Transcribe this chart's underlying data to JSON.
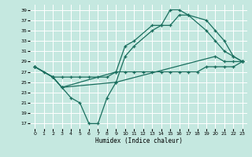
{
  "xlabel": "Humidex (Indice chaleur)",
  "bg_color": "#c5e8e0",
  "line_color": "#1a6e5e",
  "grid_color": "#ffffff",
  "xlim": [
    -0.5,
    23.5
  ],
  "ylim": [
    16,
    40
  ],
  "yticks": [
    17,
    19,
    21,
    23,
    25,
    27,
    29,
    31,
    33,
    35,
    37,
    39
  ],
  "xticks": [
    0,
    1,
    2,
    3,
    4,
    5,
    6,
    7,
    8,
    9,
    10,
    11,
    12,
    13,
    14,
    15,
    16,
    17,
    18,
    19,
    20,
    21,
    22,
    23
  ],
  "line1_x": [
    0,
    1,
    2,
    3,
    4,
    5,
    6,
    7,
    8,
    9,
    10,
    11,
    12,
    13,
    14,
    15,
    16,
    17,
    18,
    19,
    20,
    21,
    22,
    23
  ],
  "line1_y": [
    28,
    27,
    26,
    26,
    26,
    26,
    26,
    26,
    26,
    27,
    27,
    27,
    27,
    27,
    27,
    27,
    27,
    27,
    27,
    28,
    28,
    28,
    28,
    29
  ],
  "line2_x": [
    0,
    2,
    3,
    9,
    10,
    11,
    13,
    14,
    15,
    16,
    17,
    19,
    20,
    21,
    22,
    23
  ],
  "line2_y": [
    28,
    26,
    24,
    25,
    30,
    32,
    35,
    36,
    36,
    38,
    38,
    35,
    33,
    31,
    30,
    29
  ],
  "line3_x": [
    0,
    2,
    3,
    9,
    10,
    11,
    13,
    14,
    15,
    16,
    17,
    19,
    20,
    21,
    22,
    23
  ],
  "line3_y": [
    28,
    26,
    24,
    27,
    32,
    33,
    36,
    36,
    39,
    39,
    38,
    37,
    35,
    33,
    30,
    29
  ],
  "line4_x": [
    0,
    2,
    3,
    4,
    5,
    6,
    7,
    8,
    9,
    20,
    21,
    22,
    23
  ],
  "line4_y": [
    28,
    26,
    24,
    22,
    21,
    17,
    17,
    22,
    25,
    30,
    29,
    29,
    29
  ]
}
